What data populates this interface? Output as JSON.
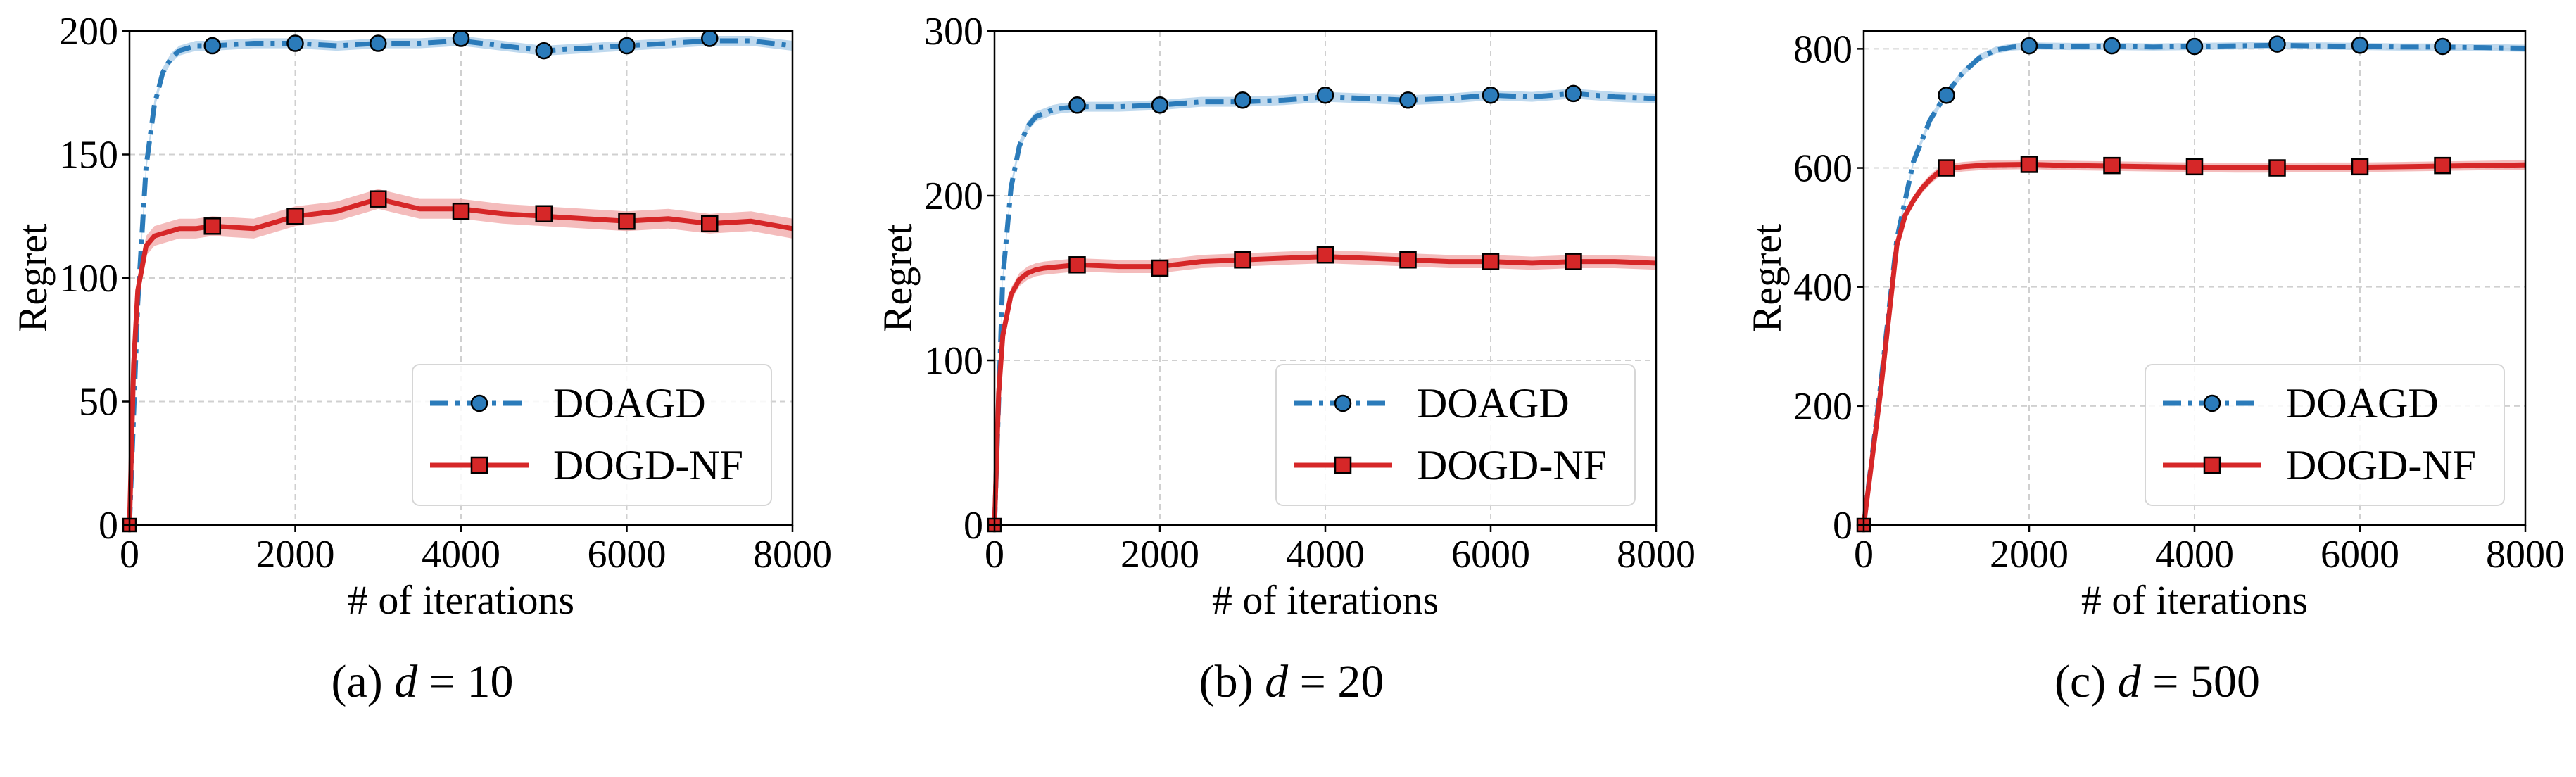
{
  "colors": {
    "doagd": "#2b7bba",
    "doagd_band": "#a9cce8",
    "dogd": "#d62728",
    "dogd_band": "#f0a5a5",
    "marker_edge": "#000000"
  },
  "chart_data": [
    {
      "type": "line",
      "caption_prefix": "(a) ",
      "caption_math": "d",
      "caption_suffix": " = 10",
      "xlabel": "# of iterations",
      "ylabel": "Regret",
      "xlim": [
        0,
        8000
      ],
      "ylim": [
        0,
        200
      ],
      "xticks": [
        0,
        2000,
        4000,
        6000,
        8000
      ],
      "yticks": [
        0,
        50,
        100,
        150,
        200
      ],
      "grid": true,
      "legend_position": "lower-right",
      "series": [
        {
          "name": "DOAGD",
          "style": "dash-dot",
          "marker": "circle",
          "x": [
            0,
            100,
            200,
            300,
            400,
            500,
            600,
            700,
            800,
            900,
            1000,
            1500,
            2000,
            2500,
            3000,
            3500,
            4000,
            4500,
            5000,
            5500,
            6000,
            6500,
            7000,
            7500,
            8000
          ],
          "y": [
            0,
            90,
            145,
            170,
            183,
            189,
            192,
            193,
            194,
            194,
            194,
            195,
            195,
            194,
            195,
            195,
            196,
            194,
            192,
            193,
            194,
            195,
            196,
            196,
            194
          ],
          "band": 2,
          "marker_x": [
            1000,
            2000,
            3000,
            4000,
            5000,
            6000,
            7000
          ],
          "marker_y": [
            194,
            195,
            195,
            197,
            192,
            194,
            197
          ]
        },
        {
          "name": "DOGD-NF",
          "style": "solid",
          "marker": "square",
          "x": [
            0,
            50,
            100,
            200,
            300,
            400,
            500,
            600,
            800,
            1000,
            1500,
            2000,
            2500,
            3000,
            3500,
            4000,
            4500,
            5000,
            5500,
            6000,
            6500,
            7000,
            7500,
            8000
          ],
          "y": [
            0,
            65,
            95,
            113,
            117,
            118,
            119,
            120,
            120,
            121,
            120,
            125,
            127,
            132,
            128,
            128,
            126,
            125,
            124,
            123,
            124,
            122,
            123,
            120
          ],
          "band": 4,
          "marker_x": [
            1000,
            2000,
            3000,
            4000,
            5000,
            6000,
            7000
          ],
          "marker_y": [
            121,
            125,
            132,
            127,
            126,
            123,
            122
          ]
        }
      ]
    },
    {
      "type": "line",
      "caption_prefix": "(b) ",
      "caption_math": "d",
      "caption_suffix": " = 20",
      "xlabel": "# of iterations",
      "ylabel": "Regret",
      "xlim": [
        0,
        8000
      ],
      "ylim": [
        0,
        300
      ],
      "xticks": [
        0,
        2000,
        4000,
        6000,
        8000
      ],
      "yticks": [
        0,
        100,
        200,
        300
      ],
      "grid": true,
      "legend_position": "lower-right",
      "series": [
        {
          "name": "DOAGD",
          "style": "dash-dot",
          "marker": "circle",
          "x": [
            0,
            100,
            200,
            300,
            400,
            500,
            600,
            700,
            800,
            1000,
            1500,
            2000,
            2500,
            3000,
            3500,
            4000,
            4500,
            5000,
            5500,
            6000,
            6500,
            7000,
            7500,
            8000
          ],
          "y": [
            0,
            150,
            205,
            230,
            242,
            248,
            250,
            252,
            253,
            254,
            254,
            255,
            257,
            257,
            258,
            260,
            259,
            258,
            259,
            261,
            260,
            262,
            260,
            259
          ],
          "band": 3,
          "marker_x": [
            1000,
            2000,
            3000,
            4000,
            5000,
            6000,
            7000
          ],
          "marker_y": [
            255,
            255,
            258,
            261,
            258,
            261,
            262
          ]
        },
        {
          "name": "DOGD-NF",
          "style": "solid",
          "marker": "square",
          "x": [
            0,
            50,
            100,
            200,
            300,
            400,
            500,
            600,
            800,
            1000,
            1500,
            2000,
            2500,
            3000,
            3500,
            4000,
            4500,
            5000,
            5500,
            6000,
            6500,
            7000,
            7500,
            8000
          ],
          "y": [
            0,
            80,
            115,
            140,
            149,
            153,
            155,
            156,
            157,
            158,
            157,
            157,
            160,
            161,
            162,
            163,
            162,
            161,
            160,
            160,
            159,
            160,
            160,
            159
          ],
          "band": 4,
          "marker_x": [
            1000,
            2000,
            3000,
            4000,
            5000,
            6000,
            7000
          ],
          "marker_y": [
            158,
            156,
            161,
            164,
            161,
            160,
            160
          ]
        }
      ]
    },
    {
      "type": "line",
      "caption_prefix": "(c) ",
      "caption_math": "d",
      "caption_suffix": " = 500",
      "xlabel": "# of iterations",
      "ylabel": "Regret",
      "xlim": [
        0,
        8000
      ],
      "ylim": [
        0,
        830
      ],
      "xticks": [
        0,
        2000,
        4000,
        6000,
        8000
      ],
      "yticks": [
        0,
        200,
        400,
        600,
        800
      ],
      "grid": true,
      "legend_position": "lower-right",
      "series": [
        {
          "name": "DOAGD",
          "style": "dash-dot",
          "marker": "circle",
          "x": [
            0,
            200,
            400,
            600,
            800,
            1000,
            1200,
            1400,
            1600,
            1800,
            2000,
            2500,
            3000,
            3500,
            4000,
            4500,
            5000,
            5500,
            6000,
            6500,
            7000,
            7500,
            8000
          ],
          "y": [
            0,
            230,
            480,
            610,
            680,
            725,
            760,
            785,
            798,
            803,
            805,
            804,
            804,
            803,
            804,
            805,
            806,
            805,
            804,
            803,
            803,
            802,
            801
          ],
          "band": 6,
          "marker_x": [
            1000,
            2000,
            3000,
            4000,
            5000,
            6000,
            7000
          ],
          "marker_y": [
            722,
            805,
            805,
            804,
            808,
            806,
            804
          ]
        },
        {
          "name": "DOGD-NF",
          "style": "solid",
          "marker": "square",
          "x": [
            0,
            200,
            400,
            500,
            600,
            700,
            800,
            900,
            1000,
            1200,
            1500,
            2000,
            2500,
            3000,
            3500,
            4000,
            4500,
            5000,
            5500,
            6000,
            6500,
            7000,
            7500,
            8000
          ],
          "y": [
            0,
            220,
            470,
            520,
            545,
            565,
            580,
            592,
            598,
            602,
            605,
            606,
            604,
            603,
            602,
            601,
            600,
            600,
            601,
            601,
            602,
            603,
            604,
            605
          ],
          "band": 8,
          "marker_x": [
            1000,
            2000,
            3000,
            4000,
            5000,
            6000,
            7000
          ],
          "marker_y": [
            600,
            606,
            604,
            602,
            600,
            602,
            604
          ]
        }
      ]
    }
  ]
}
